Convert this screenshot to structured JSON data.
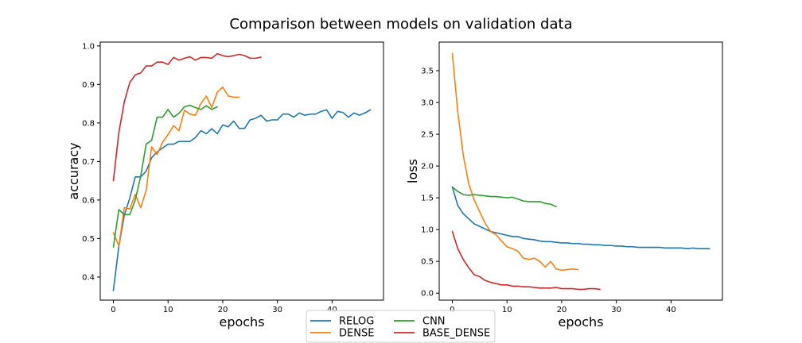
{
  "figure": {
    "title": "Comparison between models on validation data",
    "legend": {
      "position": "bottom-center",
      "entries": [
        {
          "name": "RELOG",
          "color": "#1f77b4"
        },
        {
          "name": "DENSE",
          "color": "#ff7f0e"
        },
        {
          "name": "CNN",
          "color": "#2ca02c"
        },
        {
          "name": "BASE_DENSE",
          "color": "#d62728"
        }
      ]
    }
  },
  "chart_data": [
    {
      "type": "line",
      "title": "",
      "xlabel": "epochs",
      "ylabel": "accuracy",
      "xlim": [
        -2.4,
        49.4
      ],
      "ylim": [
        0.34,
        1.01
      ],
      "xticks": [
        0,
        10,
        20,
        30,
        40
      ],
      "yticks": [
        0.4,
        0.5,
        0.6,
        0.7,
        0.8,
        0.9,
        1.0
      ],
      "ytick_labels": [
        "0.4",
        "0.5",
        "0.6",
        "0.7",
        "0.8",
        "0.9",
        "1.0"
      ],
      "grid": false,
      "series": [
        {
          "name": "RELOG",
          "color": "#1f77b4",
          "values": [
            0.365,
            0.48,
            0.56,
            0.605,
            0.66,
            0.66,
            0.675,
            0.71,
            0.725,
            0.735,
            0.745,
            0.745,
            0.752,
            0.752,
            0.752,
            0.762,
            0.78,
            0.772,
            0.785,
            0.772,
            0.795,
            0.79,
            0.805,
            0.786,
            0.786,
            0.808,
            0.812,
            0.82,
            0.805,
            0.808,
            0.808,
            0.823,
            0.823,
            0.815,
            0.826,
            0.82,
            0.823,
            0.823,
            0.83,
            0.834,
            0.812,
            0.83,
            0.827,
            0.815,
            0.826,
            0.82,
            0.826,
            0.834
          ]
        },
        {
          "name": "DENSE",
          "color": "#ff7f0e",
          "values": [
            0.515,
            0.48,
            0.58,
            0.577,
            0.615,
            0.58,
            0.625,
            0.738,
            0.718,
            0.75,
            0.77,
            0.793,
            0.78,
            0.833,
            0.823,
            0.82,
            0.85,
            0.87,
            0.84,
            0.88,
            0.893,
            0.87,
            0.867,
            0.867
          ]
        },
        {
          "name": "CNN",
          "color": "#2ca02c",
          "values": [
            0.478,
            0.575,
            0.562,
            0.562,
            0.6,
            0.662,
            0.745,
            0.755,
            0.815,
            0.815,
            0.835,
            0.815,
            0.825,
            0.842,
            0.846,
            0.84,
            0.835,
            0.845,
            0.835,
            0.842
          ]
        },
        {
          "name": "BASE_DENSE",
          "color": "#d62728",
          "values": [
            0.65,
            0.775,
            0.855,
            0.905,
            0.925,
            0.93,
            0.948,
            0.948,
            0.958,
            0.958,
            0.952,
            0.97,
            0.963,
            0.968,
            0.972,
            0.963,
            0.97,
            0.97,
            0.968,
            0.98,
            0.975,
            0.972,
            0.975,
            0.978,
            0.975,
            0.968,
            0.968,
            0.971
          ]
        }
      ]
    },
    {
      "type": "line",
      "title": "",
      "xlabel": "epochs",
      "ylabel": "loss",
      "xlim": [
        -2.4,
        49.4
      ],
      "ylim": [
        -0.11,
        3.95
      ],
      "xticks": [
        0,
        10,
        20,
        30,
        40
      ],
      "yticks": [
        0.0,
        0.5,
        1.0,
        1.5,
        2.0,
        2.5,
        3.0,
        3.5
      ],
      "ytick_labels": [
        "0.0",
        "0.5",
        "1.0",
        "1.5",
        "2.0",
        "2.5",
        "3.0",
        "3.5"
      ],
      "grid": false,
      "series": [
        {
          "name": "RELOG",
          "color": "#1f77b4",
          "values": [
            1.67,
            1.38,
            1.25,
            1.17,
            1.09,
            1.05,
            1.01,
            0.97,
            0.95,
            0.93,
            0.91,
            0.89,
            0.89,
            0.86,
            0.85,
            0.84,
            0.82,
            0.81,
            0.81,
            0.8,
            0.79,
            0.79,
            0.78,
            0.78,
            0.77,
            0.77,
            0.76,
            0.76,
            0.75,
            0.75,
            0.74,
            0.74,
            0.73,
            0.73,
            0.72,
            0.72,
            0.72,
            0.72,
            0.72,
            0.71,
            0.71,
            0.71,
            0.71,
            0.7,
            0.71,
            0.7,
            0.7,
            0.7
          ]
        },
        {
          "name": "DENSE",
          "color": "#ff7f0e",
          "values": [
            3.77,
            2.85,
            2.17,
            1.72,
            1.47,
            1.28,
            1.1,
            0.97,
            0.92,
            0.82,
            0.73,
            0.7,
            0.66,
            0.55,
            0.53,
            0.55,
            0.5,
            0.41,
            0.5,
            0.38,
            0.36,
            0.37,
            0.38,
            0.37
          ]
        },
        {
          "name": "CNN",
          "color": "#2ca02c",
          "values": [
            1.67,
            1.6,
            1.55,
            1.54,
            1.55,
            1.54,
            1.53,
            1.52,
            1.52,
            1.51,
            1.5,
            1.51,
            1.48,
            1.45,
            1.44,
            1.44,
            1.44,
            1.41,
            1.4,
            1.36
          ]
        },
        {
          "name": "BASE_DENSE",
          "color": "#d62728",
          "values": [
            0.97,
            0.7,
            0.53,
            0.4,
            0.29,
            0.26,
            0.2,
            0.17,
            0.15,
            0.13,
            0.13,
            0.11,
            0.11,
            0.1,
            0.1,
            0.09,
            0.08,
            0.08,
            0.08,
            0.09,
            0.07,
            0.07,
            0.07,
            0.06,
            0.06,
            0.07,
            0.07,
            0.06
          ]
        }
      ]
    }
  ]
}
